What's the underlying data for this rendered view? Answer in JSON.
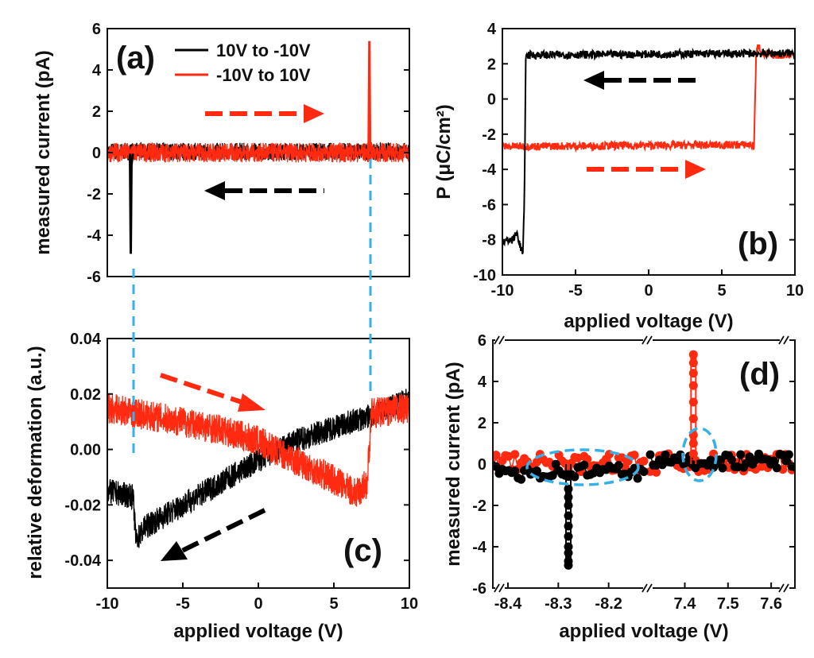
{
  "colors": {
    "black_trace": "#000000",
    "red_trace": "#ff2a10",
    "guide": "#36b0e6"
  },
  "chart_data": [
    {
      "id": "a",
      "type": "line",
      "panel_label": "(a)",
      "ylabel": "measured current (pA)",
      "xlabel": "",
      "xlim": [
        -10,
        10
      ],
      "ylim": [
        -6,
        6
      ],
      "yticks": [
        -6,
        -4,
        -2,
        0,
        2,
        4,
        6
      ],
      "legend": {
        "placement": "top",
        "entries": [
          "10V to -10V",
          "-10V to 10V"
        ]
      },
      "series": [
        {
          "name": "10V to -10V",
          "color": "black",
          "x": [
            -10,
            -8.5,
            -8.45,
            -8.4,
            -8.3,
            10
          ],
          "y": [
            0,
            0,
            -4.9,
            -0.6,
            0,
            0
          ]
        },
        {
          "name": "-10V to 10V",
          "color": "red",
          "x": [
            -10,
            7.3,
            7.35,
            7.4,
            7.5,
            10
          ],
          "y": [
            0,
            0,
            5.4,
            0.4,
            0,
            0
          ]
        }
      ],
      "arrows": [
        {
          "color": "red",
          "direction": "right"
        },
        {
          "color": "black",
          "direction": "left"
        }
      ]
    },
    {
      "id": "b",
      "type": "line",
      "panel_label": "(b)",
      "ylabel": "P (μC/cm²)",
      "xlabel": "applied voltage (V)",
      "xlim": [
        -10,
        10
      ],
      "ylim": [
        -10,
        4
      ],
      "xticks": [
        -10,
        -5,
        0,
        5,
        10
      ],
      "yticks": [
        -10,
        -8,
        -6,
        -4,
        -2,
        0,
        2,
        4
      ],
      "series": [
        {
          "name": "10V to -10V",
          "color": "black",
          "x": [
            -10,
            -9.3,
            -9.0,
            -8.8,
            -8.6,
            -8.5,
            -8.4,
            -8.2,
            10
          ],
          "y": [
            -8.1,
            -8.0,
            -7.6,
            -8.3,
            -8.8,
            -6,
            2.4,
            2.5,
            2.6
          ]
        },
        {
          "name": "-10V to 10V",
          "color": "red",
          "x": [
            -10,
            7.0,
            7.2,
            7.35,
            7.5,
            7.8,
            10
          ],
          "y": [
            -2.7,
            -2.6,
            -2.7,
            2.5,
            3.1,
            2.5,
            2.5
          ]
        }
      ],
      "arrows": [
        {
          "color": "black",
          "direction": "left"
        },
        {
          "color": "red",
          "direction": "right"
        }
      ]
    },
    {
      "id": "c",
      "type": "line",
      "panel_label": "(c)",
      "ylabel": "relative deformation (a.u.)",
      "xlabel": "applied voltage (V)",
      "xlim": [
        -10,
        10
      ],
      "ylim": [
        -0.05,
        0.04
      ],
      "xticks": [
        -10,
        -5,
        0,
        5,
        10
      ],
      "yticks": [
        -0.04,
        -0.02,
        0.0,
        0.02,
        0.04
      ],
      "ytick_labels": [
        "-0.04",
        "-0.02",
        "0.00",
        "0.02",
        "0.04"
      ],
      "series": [
        {
          "name": "10V to -10V",
          "color": "black",
          "x": [
            10,
            7.4,
            5,
            2.5,
            0,
            -2.5,
            -5,
            -7.5,
            -8.1,
            -8.3,
            -10
          ],
          "y": [
            0.018,
            0.012,
            0.008,
            0.003,
            -0.004,
            -0.012,
            -0.02,
            -0.028,
            -0.033,
            -0.017,
            -0.015
          ]
        },
        {
          "name": "-10V to 10V",
          "color": "red",
          "x": [
            -10,
            -8,
            -5,
            -2.5,
            0,
            2.5,
            5,
            6.5,
            7.2,
            7.5,
            10
          ],
          "y": [
            0.015,
            0.013,
            0.01,
            0.007,
            0.003,
            -0.004,
            -0.011,
            -0.016,
            -0.012,
            0.013,
            0.015
          ]
        }
      ],
      "arrows": [
        {
          "color": "red",
          "direction": "down-right"
        },
        {
          "color": "black",
          "direction": "down-left"
        }
      ]
    },
    {
      "id": "d",
      "type": "scatter",
      "panel_label": "(d)",
      "ylabel": "measured current (pA)",
      "xlabel": "applied voltage (V)",
      "ylim": [
        -6,
        6
      ],
      "yticks": [
        -6,
        -4,
        -2,
        0,
        2,
        4,
        6
      ],
      "broken_axis": true,
      "segments": [
        {
          "xlim": [
            -8.43,
            -8.13
          ],
          "xticks": [
            -8.4,
            -8.3,
            -8.2
          ],
          "xtick_labels": [
            "-8.4",
            "-8.3",
            "-8.2"
          ]
        },
        {
          "xlim": [
            7.32,
            7.655
          ],
          "xticks": [
            7.4,
            7.5,
            7.6
          ],
          "xtick_labels": [
            "7.4",
            "7.5",
            "7.6"
          ]
        }
      ],
      "series": [
        {
          "name": "10V to -10V",
          "color": "black",
          "spike": {
            "x": -8.28,
            "ymin": -4.9
          }
        },
        {
          "name": "-10V to 10V",
          "color": "red",
          "spike": {
            "x": 7.42,
            "ymax": 5.3
          }
        }
      ],
      "highlights": [
        {
          "shape": "ellipse",
          "segment": 0,
          "color": "guide"
        },
        {
          "shape": "ellipse",
          "segment": 1,
          "color": "guide"
        }
      ]
    }
  ]
}
